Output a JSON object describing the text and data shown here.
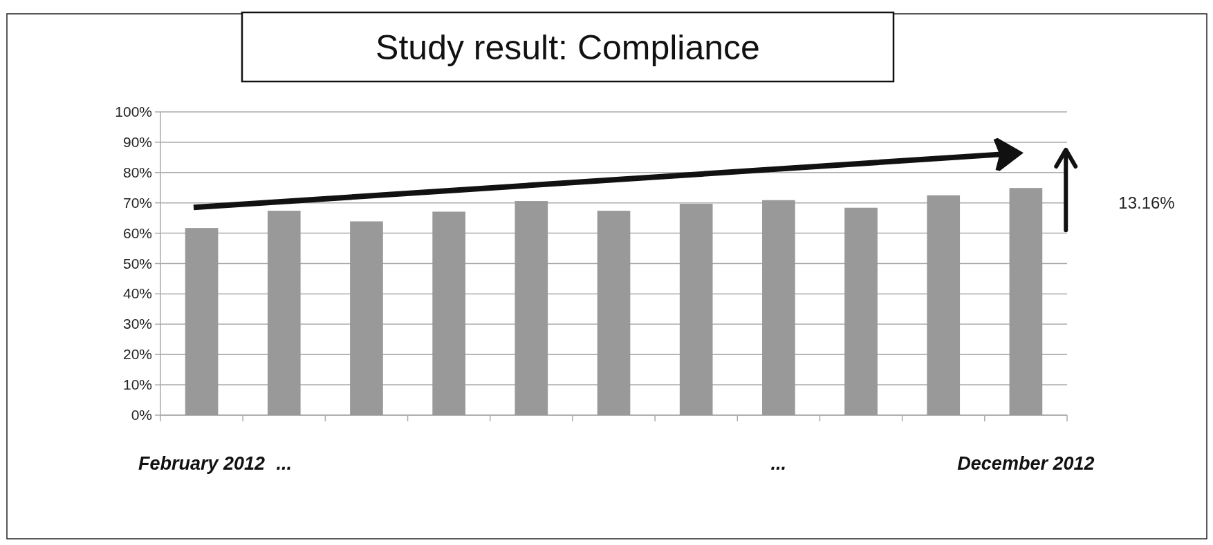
{
  "chart_data": {
    "type": "bar",
    "title": "Study result:  Compliance",
    "categories": [
      "February 2012",
      "...",
      null,
      null,
      null,
      null,
      null,
      "...",
      null,
      null,
      "December 2012"
    ],
    "values": [
      61.7,
      67.4,
      63.9,
      67.1,
      70.6,
      67.4,
      69.7,
      70.9,
      68.4,
      72.5,
      74.9
    ],
    "color": "#999999",
    "ylim": [
      0,
      100
    ],
    "yticks": [
      {
        "value": 0,
        "label": "0%"
      },
      {
        "value": 10,
        "label": "10%"
      },
      {
        "value": 20,
        "label": "20%"
      },
      {
        "value": 30,
        "label": "30%"
      },
      {
        "value": 40,
        "label": "40%"
      },
      {
        "value": 50,
        "label": "50%"
      },
      {
        "value": 60,
        "label": "60%"
      },
      {
        "value": 70,
        "label": "70%"
      },
      {
        "value": 80,
        "label": "80%"
      },
      {
        "value": 90,
        "label": "90%"
      },
      {
        "value": 100,
        "label": "100%"
      }
    ],
    "grid": "y",
    "annotations": [
      "13.16%"
    ]
  }
}
